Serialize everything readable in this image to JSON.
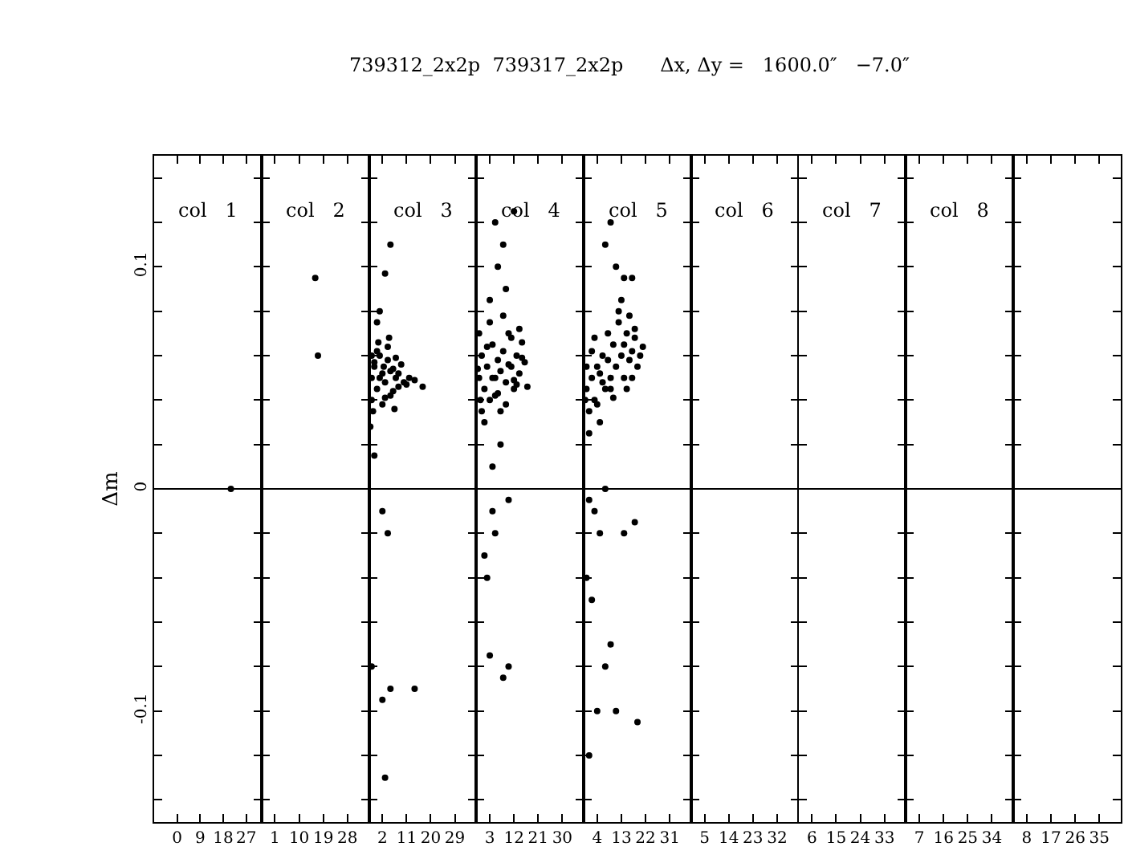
{
  "chart_data": [
    {
      "type": "scatter",
      "ylabel": "Δm",
      "xlim": [
        -9,
        33
      ],
      "xticks": [
        0,
        9,
        18,
        27
      ],
      "ylim": [
        -0.15,
        0.15
      ],
      "yticks": [
        {
          "value": -0.14,
          "label": null
        },
        {
          "value": -0.12,
          "label": null
        },
        -0.1,
        {
          "value": -0.08,
          "label": null
        },
        {
          "value": -0.06,
          "label": null
        },
        {
          "value": -0.04,
          "label": null
        },
        {
          "value": -0.02,
          "label": null
        },
        0,
        {
          "value": 0.02,
          "label": null
        },
        {
          "value": 0.04,
          "label": null
        },
        {
          "value": 0.06,
          "label": null
        },
        {
          "value": 0.08,
          "label": null
        },
        0.1,
        {
          "value": 0.12,
          "label": null
        },
        {
          "value": 0.14,
          "label": null
        }
      ],
      "ref_lines": [
        {
          "axis": "y",
          "value": 0
        }
      ],
      "annotations": [
        "col   1"
      ],
      "marker": "circle",
      "series": [
        {
          "color": "#000000",
          "x": [
            21
          ],
          "values": [
            0
          ]
        }
      ]
    },
    {
      "type": "scatter",
      "xlim": [
        -4,
        36
      ],
      "xticks": [
        1,
        10,
        19,
        28
      ],
      "ylim": [
        -0.15,
        0.15
      ],
      "yticks": [
        {
          "value": -0.14,
          "label": null
        },
        {
          "value": -0.12,
          "label": null
        },
        {
          "value": -0.1,
          "label": null
        },
        {
          "value": -0.08,
          "label": null
        },
        {
          "value": -0.06,
          "label": null
        },
        {
          "value": -0.04,
          "label": null
        },
        {
          "value": -0.02,
          "label": null
        },
        {
          "value": 0,
          "label": null
        },
        {
          "value": 0.02,
          "label": null
        },
        {
          "value": 0.04,
          "label": null
        },
        {
          "value": 0.06,
          "label": null
        },
        {
          "value": 0.08,
          "label": null
        },
        {
          "value": 0.1,
          "label": null
        },
        {
          "value": 0.12,
          "label": null
        },
        {
          "value": 0.14,
          "label": null
        }
      ],
      "tick_labels": "x",
      "ref_lines": [
        {
          "axis": "y",
          "value": 0
        }
      ],
      "annotations": [
        "col   2"
      ],
      "marker": "circle",
      "series": [
        {
          "color": "#000000",
          "x": [
            16,
            17
          ],
          "values": [
            0.095,
            0.06
          ]
        }
      ]
    },
    {
      "type": "scatter",
      "xlim": [
        -3,
        37
      ],
      "xticks": [
        2,
        11,
        20,
        29
      ],
      "ylim": [
        -0.15,
        0.15
      ],
      "yticks": [
        {
          "value": -0.14,
          "label": null
        },
        {
          "value": -0.12,
          "label": null
        },
        {
          "value": -0.1,
          "label": null
        },
        {
          "value": -0.08,
          "label": null
        },
        {
          "value": -0.06,
          "label": null
        },
        {
          "value": -0.04,
          "label": null
        },
        {
          "value": -0.02,
          "label": null
        },
        {
          "value": 0,
          "label": null
        },
        {
          "value": 0.02,
          "label": null
        },
        {
          "value": 0.04,
          "label": null
        },
        {
          "value": 0.06,
          "label": null
        },
        {
          "value": 0.08,
          "label": null
        },
        {
          "value": 0.1,
          "label": null
        },
        {
          "value": 0.12,
          "label": null
        },
        {
          "value": 0.14,
          "label": null
        }
      ],
      "tick_labels": "x",
      "ref_lines": [
        {
          "axis": "y",
          "value": 0
        }
      ],
      "annotations": [
        "col   3"
      ],
      "marker": "circle",
      "series": [
        {
          "color": "#000000",
          "x": [
            5,
            3,
            1,
            -2,
            -1,
            2,
            4,
            2,
            5,
            14,
            -2,
            3,
            0,
            -2,
            -1,
            0,
            1,
            2,
            3,
            4,
            5,
            6,
            7,
            8,
            9,
            -2,
            0,
            2,
            4,
            6,
            8,
            10,
            12,
            -1,
            1,
            3,
            5,
            7,
            11,
            14,
            17,
            -2.5,
            -1.5,
            0.5,
            2.5,
            4.5,
            6.5
          ],
          "values": [
            0.11,
            0.097,
            0.08,
            0.06,
            0.015,
            -0.01,
            -0.02,
            -0.095,
            -0.09,
            -0.09,
            -0.08,
            -0.13,
            0.075,
            0.05,
            0.055,
            0.045,
            0.06,
            0.052,
            0.048,
            0.058,
            0.042,
            0.054,
            0.05,
            0.046,
            0.056,
            0.04,
            0.062,
            0.038,
            0.064,
            0.044,
            0.052,
            0.048,
            0.05,
            0.057,
            0.05,
            0.041,
            0.053,
            0.059,
            0.047,
            0.049,
            0.046,
            0.028,
            0.035,
            0.066,
            0.055,
            0.068,
            0.036
          ]
        }
      ]
    },
    {
      "type": "scatter",
      "xlim": [
        -2,
        38
      ],
      "xticks": [
        3,
        12,
        21,
        30
      ],
      "ylim": [
        -0.15,
        0.15
      ],
      "yticks": [
        {
          "value": -0.14,
          "label": null
        },
        {
          "value": -0.12,
          "label": null
        },
        {
          "value": -0.1,
          "label": null
        },
        {
          "value": -0.08,
          "label": null
        },
        {
          "value": -0.06,
          "label": null
        },
        {
          "value": -0.04,
          "label": null
        },
        {
          "value": -0.02,
          "label": null
        },
        {
          "value": 0,
          "label": null
        },
        {
          "value": 0.02,
          "label": null
        },
        {
          "value": 0.04,
          "label": null
        },
        {
          "value": 0.06,
          "label": null
        },
        {
          "value": 0.08,
          "label": null
        },
        {
          "value": 0.1,
          "label": null
        },
        {
          "value": 0.12,
          "label": null
        },
        {
          "value": 0.14,
          "label": null
        }
      ],
      "tick_labels": "x",
      "ref_lines": [
        {
          "axis": "y",
          "value": 0
        }
      ],
      "annotations": [
        "col   4"
      ],
      "marker": "circle",
      "series": [
        {
          "color": "#000000",
          "x": [
            5,
            8,
            12,
            6,
            9,
            3,
            4,
            5,
            10,
            1,
            2,
            3,
            10,
            8,
            7,
            4,
            -1,
            0,
            1,
            2,
            3,
            4,
            5,
            6,
            7,
            8,
            9,
            10,
            11,
            12,
            13,
            14,
            15,
            16,
            -1,
            1,
            3,
            5,
            7,
            9,
            11,
            13,
            15,
            0,
            2,
            4,
            6,
            8,
            10,
            12,
            -1.5,
            -0.5,
            14,
            17
          ],
          "values": [
            0.12,
            0.11,
            0.125,
            0.1,
            0.09,
            0.085,
            -0.01,
            -0.02,
            -0.005,
            -0.03,
            -0.04,
            -0.075,
            -0.08,
            -0.085,
            0.02,
            0.01,
            0.05,
            0.06,
            0.045,
            0.055,
            0.04,
            0.065,
            0.05,
            0.058,
            0.035,
            0.062,
            0.048,
            0.07,
            0.055,
            0.045,
            0.06,
            0.052,
            0.066,
            0.057,
            0.07,
            0.03,
            0.075,
            0.042,
            0.053,
            0.038,
            0.068,
            0.047,
            0.059,
            0.035,
            0.064,
            0.05,
            0.043,
            0.078,
            0.056,
            0.049,
            0.054,
            0.04,
            0.072,
            0.046
          ]
        }
      ]
    },
    {
      "type": "scatter",
      "title": "739312_2x2p  739317_2x2p      Δx, Δy =   1600.0″   −7.0″",
      "xlim": [
        -1,
        39
      ],
      "xticks": [
        4,
        13,
        22,
        31
      ],
      "ylim": [
        -0.15,
        0.15
      ],
      "yticks": [
        {
          "value": -0.14,
          "label": null
        },
        {
          "value": -0.12,
          "label": null
        },
        {
          "value": -0.1,
          "label": null
        },
        {
          "value": -0.08,
          "label": null
        },
        {
          "value": -0.06,
          "label": null
        },
        {
          "value": -0.04,
          "label": null
        },
        {
          "value": -0.02,
          "label": null
        },
        {
          "value": 0,
          "label": null
        },
        {
          "value": 0.02,
          "label": null
        },
        {
          "value": 0.04,
          "label": null
        },
        {
          "value": 0.06,
          "label": null
        },
        {
          "value": 0.08,
          "label": null
        },
        {
          "value": 0.1,
          "label": null
        },
        {
          "value": 0.12,
          "label": null
        },
        {
          "value": 0.14,
          "label": null
        }
      ],
      "tick_labels": "x",
      "ref_lines": [
        {
          "axis": "y",
          "value": 0
        }
      ],
      "annotations": [
        "col   5"
      ],
      "marker": "circle",
      "series": [
        {
          "color": "#000000",
          "x": [
            1,
            3,
            5,
            0,
            2,
            14,
            18,
            9,
            7,
            4,
            11,
            19,
            1,
            7,
            14,
            11,
            17,
            7,
            9,
            0,
            1,
            2,
            3,
            4,
            5,
            6,
            7,
            8,
            9,
            10,
            11,
            12,
            13,
            14,
            15,
            16,
            17,
            18,
            19,
            20,
            0,
            2,
            4,
            6,
            8,
            10,
            12,
            14,
            16,
            18,
            1,
            3,
            5,
            13,
            15,
            17,
            -0.5,
            9,
            21
          ],
          "values": [
            -0.005,
            -0.01,
            -0.02,
            -0.04,
            -0.05,
            -0.02,
            -0.015,
            -0.07,
            -0.08,
            -0.1,
            -0.1,
            -0.105,
            -0.12,
            0,
            0.095,
            0.1,
            0.095,
            0.11,
            0.12,
            0.045,
            0.035,
            0.05,
            0.04,
            0.055,
            0.03,
            0.06,
            0.045,
            0.07,
            0.05,
            0.065,
            0.055,
            0.075,
            0.06,
            0.065,
            0.07,
            0.058,
            0.062,
            0.068,
            0.055,
            0.06,
            0.055,
            0.062,
            0.038,
            0.048,
            0.058,
            0.041,
            0.08,
            0.05,
            0.078,
            0.072,
            0.025,
            0.068,
            0.052,
            0.085,
            0.045,
            0.05,
            0.04,
            0.045,
            0.064
          ]
        }
      ]
    },
    {
      "type": "scatter",
      "xlim": [
        0,
        40
      ],
      "xticks": [
        5,
        14,
        23,
        32
      ],
      "ylim": [
        -0.15,
        0.15
      ],
      "yticks": [
        {
          "value": -0.14,
          "label": null
        },
        {
          "value": -0.12,
          "label": null
        },
        {
          "value": -0.1,
          "label": null
        },
        {
          "value": -0.08,
          "label": null
        },
        {
          "value": -0.06,
          "label": null
        },
        {
          "value": -0.04,
          "label": null
        },
        {
          "value": -0.02,
          "label": null
        },
        {
          "value": 0,
          "label": null
        },
        {
          "value": 0.02,
          "label": null
        },
        {
          "value": 0.04,
          "label": null
        },
        {
          "value": 0.06,
          "label": null
        },
        {
          "value": 0.08,
          "label": null
        },
        {
          "value": 0.1,
          "label": null
        },
        {
          "value": 0.12,
          "label": null
        },
        {
          "value": 0.14,
          "label": null
        }
      ],
      "tick_labels": "x",
      "ref_lines": [
        {
          "axis": "y",
          "value": 0
        }
      ],
      "annotations": [
        "col   6"
      ]
    },
    {
      "type": "scatter",
      "xlim": [
        1,
        41
      ],
      "xticks": [
        6,
        15,
        24,
        33
      ],
      "ylim": [
        -0.15,
        0.15
      ],
      "yticks": [
        {
          "value": -0.14,
          "label": null
        },
        {
          "value": -0.12,
          "label": null
        },
        {
          "value": -0.1,
          "label": null
        },
        {
          "value": -0.08,
          "label": null
        },
        {
          "value": -0.06,
          "label": null
        },
        {
          "value": -0.04,
          "label": null
        },
        {
          "value": -0.02,
          "label": null
        },
        {
          "value": 0,
          "label": null
        },
        {
          "value": 0.02,
          "label": null
        },
        {
          "value": 0.04,
          "label": null
        },
        {
          "value": 0.06,
          "label": null
        },
        {
          "value": 0.08,
          "label": null
        },
        {
          "value": 0.1,
          "label": null
        },
        {
          "value": 0.12,
          "label": null
        },
        {
          "value": 0.14,
          "label": null
        }
      ],
      "tick_labels": "x",
      "ref_lines": [
        {
          "axis": "y",
          "value": 0
        }
      ],
      "annotations": [
        "col   7"
      ]
    },
    {
      "type": "scatter",
      "xlim": [
        2,
        42
      ],
      "xticks": [
        7,
        16,
        25,
        34
      ],
      "ylim": [
        -0.15,
        0.15
      ],
      "yticks": [
        {
          "value": -0.14,
          "label": null
        },
        {
          "value": -0.12,
          "label": null
        },
        {
          "value": -0.1,
          "label": null
        },
        {
          "value": -0.08,
          "label": null
        },
        {
          "value": -0.06,
          "label": null
        },
        {
          "value": -0.04,
          "label": null
        },
        {
          "value": -0.02,
          "label": null
        },
        {
          "value": 0,
          "label": null
        },
        {
          "value": 0.02,
          "label": null
        },
        {
          "value": 0.04,
          "label": null
        },
        {
          "value": 0.06,
          "label": null
        },
        {
          "value": 0.08,
          "label": null
        },
        {
          "value": 0.1,
          "label": null
        },
        {
          "value": 0.12,
          "label": null
        },
        {
          "value": 0.14,
          "label": null
        }
      ],
      "tick_labels": "x",
      "ref_lines": [
        {
          "axis": "y",
          "value": 0
        }
      ],
      "annotations": [
        "col   8"
      ]
    },
    {
      "type": "scatter",
      "xlim": [
        3,
        43
      ],
      "xticks": [
        8,
        17,
        26,
        35
      ],
      "ylim": [
        -0.15,
        0.15
      ],
      "yticks": [
        {
          "value": -0.14,
          "label": null
        },
        {
          "value": -0.12,
          "label": null
        },
        {
          "value": -0.1,
          "label": null
        },
        {
          "value": -0.08,
          "label": null
        },
        {
          "value": -0.06,
          "label": null
        },
        {
          "value": -0.04,
          "label": null
        },
        {
          "value": -0.02,
          "label": null
        },
        {
          "value": 0,
          "label": null
        },
        {
          "value": 0.02,
          "label": null
        },
        {
          "value": 0.04,
          "label": null
        },
        {
          "value": 0.06,
          "label": null
        },
        {
          "value": 0.08,
          "label": null
        },
        {
          "value": 0.1,
          "label": null
        },
        {
          "value": 0.12,
          "label": null
        },
        {
          "value": 0.14,
          "label": null
        }
      ],
      "tick_labels": "x",
      "ref_lines": [
        {
          "axis": "y",
          "value": 0
        }
      ]
    }
  ]
}
